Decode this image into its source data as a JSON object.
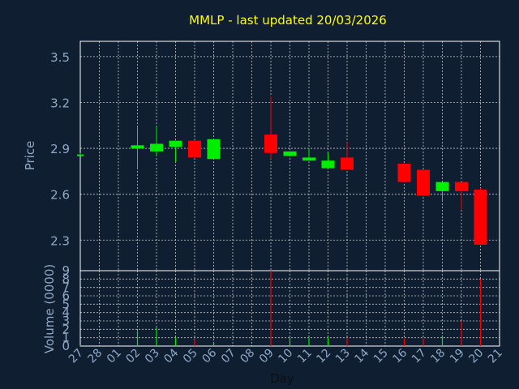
{
  "colors": {
    "background": "#0f1e30",
    "frame": "#ffffff",
    "grid": "#c8c8c8",
    "title": "#ffff00",
    "label": "#8ea8c6",
    "up": "#00ee00",
    "down": "#ff0000"
  },
  "chart_data": [
    {
      "type": "candlestick",
      "title": "MMLP - last updated 20/03/2026",
      "ylabel": "Price",
      "ylim": [
        2.1,
        3.6
      ],
      "yticks": [
        2.3,
        2.6,
        2.9,
        3.2,
        3.5
      ],
      "ytick_labels": [
        "2.3",
        "2.6",
        "2.9",
        "3.2",
        "3.5"
      ],
      "grid": true,
      "x": [
        "27",
        "28",
        "01",
        "02",
        "03",
        "04",
        "05",
        "06",
        "07",
        "08",
        "09",
        "10",
        "11",
        "12",
        "13",
        "14",
        "15",
        "16",
        "17",
        "18",
        "19",
        "20",
        "21"
      ],
      "candles": [
        {
          "x": "27",
          "open": 2.86,
          "close": 2.86,
          "high": 2.87,
          "low": 2.85
        },
        {
          "x": "02",
          "open": 2.9,
          "close": 2.92,
          "high": 3.05,
          "low": 2.77
        },
        {
          "x": "03",
          "open": 2.88,
          "close": 2.93,
          "high": 3.05,
          "low": 2.85
        },
        {
          "x": "04",
          "open": 2.91,
          "close": 2.95,
          "high": 2.95,
          "low": 2.81
        },
        {
          "x": "05",
          "open": 2.95,
          "close": 2.84,
          "high": 2.95,
          "low": 2.84
        },
        {
          "x": "06",
          "open": 2.83,
          "close": 2.96,
          "high": 2.96,
          "low": 2.83
        },
        {
          "x": "09",
          "open": 2.99,
          "close": 2.87,
          "high": 3.24,
          "low": 2.83
        },
        {
          "x": "10",
          "open": 2.85,
          "close": 2.88,
          "high": 2.88,
          "low": 2.85
        },
        {
          "x": "11",
          "open": 2.82,
          "close": 2.84,
          "high": 2.9,
          "low": 2.82
        },
        {
          "x": "12",
          "open": 2.77,
          "close": 2.82,
          "high": 2.87,
          "low": 2.77
        },
        {
          "x": "13",
          "open": 2.84,
          "close": 2.76,
          "high": 2.94,
          "low": 2.76
        },
        {
          "x": "16",
          "open": 2.8,
          "close": 2.68,
          "high": 2.8,
          "low": 2.68
        },
        {
          "x": "17",
          "open": 2.76,
          "close": 2.59,
          "high": 2.76,
          "low": 2.59
        },
        {
          "x": "18",
          "open": 2.62,
          "close": 2.68,
          "high": 2.68,
          "low": 2.55
        },
        {
          "x": "19",
          "open": 2.68,
          "close": 2.62,
          "high": 2.68,
          "low": 2.5
        },
        {
          "x": "20",
          "open": 2.63,
          "close": 2.27,
          "high": 2.64,
          "low": 2.27
        }
      ]
    },
    {
      "type": "bar",
      "ylabel": "Volume (0000)",
      "xlabel": "Day",
      "ylim": [
        0,
        9
      ],
      "yticks": [
        0,
        1,
        2,
        3,
        4,
        5,
        6,
        7,
        8,
        9
      ],
      "ytick_labels": [
        "0",
        "1",
        "2",
        "3",
        "4",
        "5",
        "6",
        "7",
        "8",
        "9"
      ],
      "grid": true,
      "bars": [
        {
          "x": "27",
          "value": 0.1,
          "direction": "up"
        },
        {
          "x": "02",
          "value": 1.8,
          "direction": "up"
        },
        {
          "x": "03",
          "value": 2.2,
          "direction": "up"
        },
        {
          "x": "04",
          "value": 1.0,
          "direction": "up"
        },
        {
          "x": "05",
          "value": 0.8,
          "direction": "down"
        },
        {
          "x": "06",
          "value": 0.4,
          "direction": "up"
        },
        {
          "x": "09",
          "value": 9.0,
          "direction": "down"
        },
        {
          "x": "10",
          "value": 1.0,
          "direction": "up"
        },
        {
          "x": "11",
          "value": 1.0,
          "direction": "up"
        },
        {
          "x": "12",
          "value": 1.0,
          "direction": "up"
        },
        {
          "x": "13",
          "value": 1.0,
          "direction": "down"
        },
        {
          "x": "16",
          "value": 0.9,
          "direction": "down"
        },
        {
          "x": "17",
          "value": 0.9,
          "direction": "down"
        },
        {
          "x": "18",
          "value": 1.2,
          "direction": "up"
        },
        {
          "x": "19",
          "value": 3.0,
          "direction": "down"
        },
        {
          "x": "20",
          "value": 8.0,
          "direction": "down"
        }
      ]
    }
  ]
}
